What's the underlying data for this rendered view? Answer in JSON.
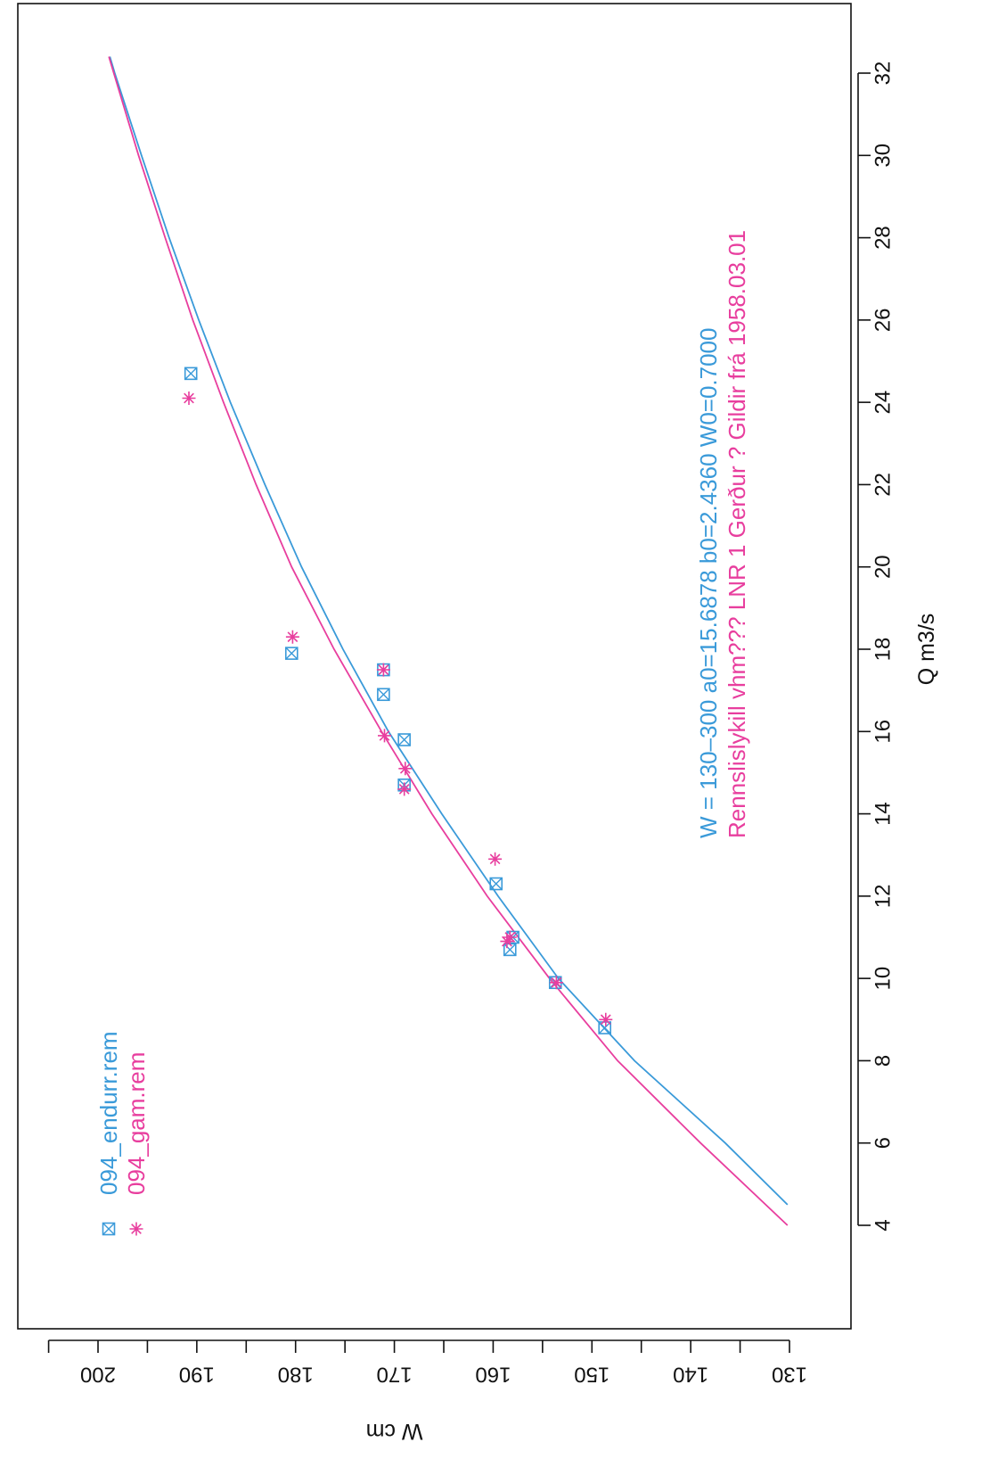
{
  "chart_data": {
    "type": "scatter",
    "orientation": "rotated-90-clockwise",
    "xlabel": "Q m3/s",
    "ylabel": "W cm",
    "xlim": [
      3,
      33
    ],
    "ylim": [
      130,
      200
    ],
    "x_ticks": [
      "4",
      "6",
      "8",
      "10",
      "12",
      "14",
      "16",
      "18",
      "20",
      "22",
      "24",
      "26",
      "28",
      "30",
      "32"
    ],
    "y_ticks": [
      "130",
      "140",
      "150",
      "160",
      "170",
      "180",
      "190",
      "200"
    ],
    "grid": false,
    "legend_position": "top-left",
    "colors": {
      "blue": "#3a9ad9",
      "magenta": "#e83e9e"
    },
    "notes": [
      {
        "text": "W = 130–300    a0=15.6878    b0=2.4360    W0=0.7000",
        "color": "#3a9ad9"
      },
      {
        "text": "Rennslislykill   vhm???  LNR 1   Gerður ?    Gildir frá 1958.03.01",
        "color": "#e83e9e"
      }
    ],
    "series": [
      {
        "name": "094_endurr.rem",
        "color": "#3a9ad9",
        "marker": "boxed-x",
        "points": [
          [
            8.8,
            148.7
          ],
          [
            9.9,
            153.7
          ],
          [
            10.7,
            158.3
          ],
          [
            11.0,
            158.0
          ],
          [
            12.3,
            159.7
          ],
          [
            14.7,
            169.0
          ],
          [
            15.8,
            169.0
          ],
          [
            16.9,
            171.1
          ],
          [
            17.5,
            171.1
          ],
          [
            17.9,
            180.4
          ],
          [
            24.7,
            190.6
          ]
        ],
        "curve": [
          [
            4.5,
            130.2
          ],
          [
            6.0,
            136.5
          ],
          [
            8.0,
            145.7
          ],
          [
            10.0,
            153.4
          ],
          [
            12.0,
            159.5
          ],
          [
            14.0,
            165.2
          ],
          [
            16.0,
            170.6
          ],
          [
            18.0,
            175.2
          ],
          [
            20.0,
            179.4
          ],
          [
            22.0,
            183.1
          ],
          [
            24.0,
            186.6
          ],
          [
            26.0,
            189.8
          ],
          [
            28.0,
            192.8
          ],
          [
            30.0,
            195.6
          ],
          [
            32.0,
            198.3
          ],
          [
            32.4,
            198.8
          ]
        ]
      },
      {
        "name": "094_gam.rem",
        "color": "#e83e9e",
        "marker": "asterisk",
        "points": [
          [
            9.0,
            148.6
          ],
          [
            9.9,
            153.6
          ],
          [
            10.9,
            158.6
          ],
          [
            11.0,
            158.3
          ],
          [
            12.9,
            159.8
          ],
          [
            14.6,
            169.0
          ],
          [
            15.1,
            168.9
          ],
          [
            15.9,
            171.0
          ],
          [
            17.5,
            171.1
          ],
          [
            18.3,
            180.3
          ],
          [
            24.1,
            190.8
          ]
        ],
        "curve": [
          [
            4.0,
            130.2
          ],
          [
            6.0,
            139.0
          ],
          [
            8.0,
            147.4
          ],
          [
            10.0,
            154.3
          ],
          [
            12.0,
            160.6
          ],
          [
            14.0,
            166.2
          ],
          [
            16.0,
            171.3
          ],
          [
            18.0,
            176.1
          ],
          [
            20.0,
            180.4
          ],
          [
            22.0,
            184.0
          ],
          [
            24.0,
            187.3
          ],
          [
            26.0,
            190.4
          ],
          [
            28.0,
            193.2
          ],
          [
            30.0,
            195.9
          ],
          [
            32.0,
            198.4
          ],
          [
            32.4,
            198.9
          ]
        ]
      }
    ]
  }
}
